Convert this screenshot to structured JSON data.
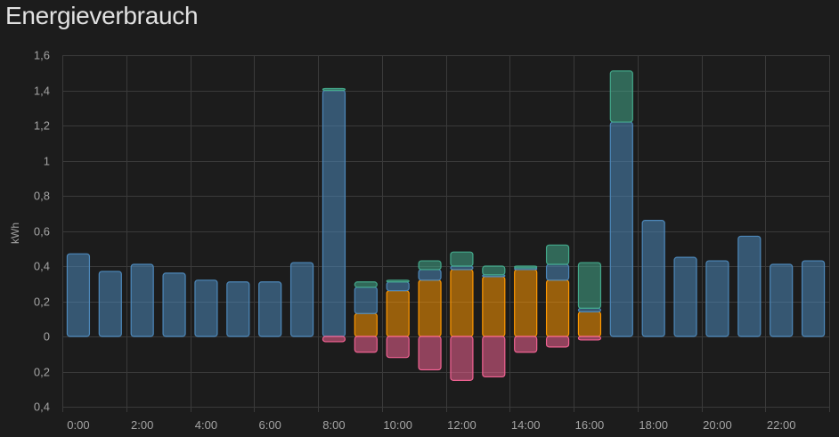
{
  "card": {
    "title": "Energieverbrauch"
  },
  "colors": {
    "grid": "#3a3a3a",
    "axis_text": "#a4a4a4",
    "grid_consumption": "#4d88ba",
    "solar": "#ff9800",
    "export": "#f06292",
    "battery": "#43a88a"
  },
  "chart_data": {
    "type": "bar",
    "title": "Energieverbrauch",
    "ylabel": "kWh",
    "xlabel": "",
    "grid": true,
    "stacked": true,
    "ylim": [
      -0.4,
      1.6
    ],
    "y_ticks": [
      {
        "value": 1.6,
        "label": "1,6"
      },
      {
        "value": 1.4,
        "label": "1,4"
      },
      {
        "value": 1.2,
        "label": "1,2"
      },
      {
        "value": 1.0,
        "label": "1"
      },
      {
        "value": 0.8,
        "label": "0,8"
      },
      {
        "value": 0.6,
        "label": "0,6"
      },
      {
        "value": 0.4,
        "label": "0,4"
      },
      {
        "value": 0.2,
        "label": "0,2"
      },
      {
        "value": 0,
        "label": "0"
      },
      {
        "value": -0.2,
        "label": "0,2"
      },
      {
        "value": -0.4,
        "label": "0,4"
      }
    ],
    "x_tick_labels": [
      "0:00",
      "2:00",
      "4:00",
      "6:00",
      "8:00",
      "10:00",
      "12:00",
      "14:00",
      "16:00",
      "18:00",
      "20:00",
      "22:00"
    ],
    "categories": [
      "0:00",
      "1:00",
      "2:00",
      "3:00",
      "4:00",
      "5:00",
      "6:00",
      "7:00",
      "8:00",
      "9:00",
      "10:00",
      "11:00",
      "12:00",
      "13:00",
      "14:00",
      "15:00",
      "16:00",
      "17:00",
      "18:00",
      "19:00",
      "20:00",
      "21:00",
      "22:00",
      "23:00"
    ],
    "series": [
      {
        "key": "solar",
        "values": [
          0,
          0,
          0,
          0,
          0,
          0,
          0,
          0,
          0,
          0.13,
          0.26,
          0.32,
          0.38,
          0.34,
          0.38,
          0.32,
          0.14,
          0,
          0,
          0,
          0,
          0,
          0,
          0
        ]
      },
      {
        "key": "grid_consumption",
        "values": [
          0.47,
          0.37,
          0.41,
          0.36,
          0.32,
          0.31,
          0.31,
          0.42,
          1.4,
          0.15,
          0.05,
          0.06,
          0.02,
          0.01,
          0.01,
          0.09,
          0.02,
          1.22,
          0.66,
          0.45,
          0.43,
          0.57,
          0.41,
          0.43
        ]
      },
      {
        "key": "battery",
        "values": [
          0,
          0,
          0,
          0,
          0,
          0,
          0,
          0,
          0.01,
          0.03,
          0.01,
          0.05,
          0.08,
          0.05,
          0.01,
          0.11,
          0.26,
          0.29,
          0,
          0,
          0,
          0,
          0,
          0
        ]
      },
      {
        "key": "export",
        "values": [
          0,
          0,
          0,
          0,
          0,
          0,
          0,
          0,
          -0.03,
          -0.09,
          -0.12,
          -0.19,
          -0.25,
          -0.23,
          -0.09,
          -0.06,
          -0.02,
          0,
          0,
          0,
          0,
          0,
          0,
          0
        ]
      }
    ]
  }
}
